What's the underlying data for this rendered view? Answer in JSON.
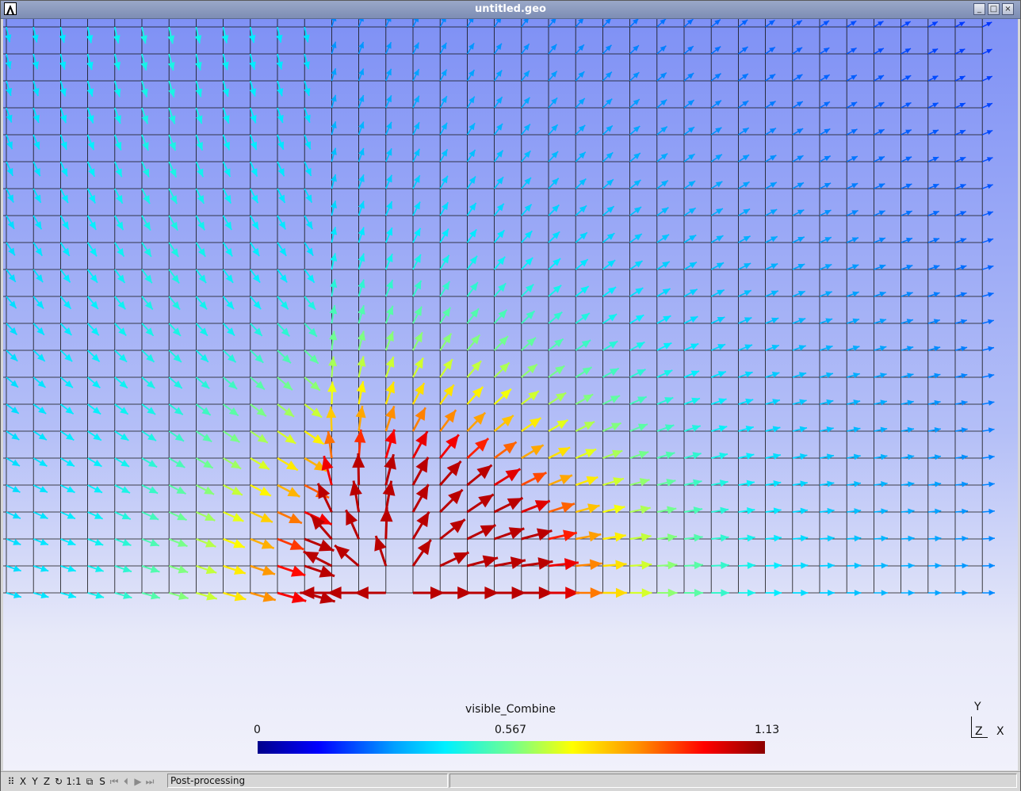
{
  "window": {
    "title": "untitled.geo",
    "minimize": "_",
    "maximize": "□",
    "close": "×"
  },
  "plot": {
    "view_name": "visible_Combine",
    "range_min": "0",
    "range_mid": "0.567",
    "range_max": "1.13",
    "axes": {
      "y": "Y",
      "z": "Z",
      "x": "X"
    },
    "colormap": [
      "#00008c",
      "#0000ff",
      "#00a0ff",
      "#00f0ff",
      "#70ff90",
      "#ffff00",
      "#ff9000",
      "#ff0000",
      "#8c0000"
    ]
  },
  "statusbar": {
    "buttons": [
      {
        "name": "snap-icon",
        "label": "⠿",
        "enabled": true
      },
      {
        "name": "x-view-button",
        "label": "X",
        "enabled": true
      },
      {
        "name": "y-view-button",
        "label": "Y",
        "enabled": true
      },
      {
        "name": "z-view-button",
        "label": "Z",
        "enabled": true
      },
      {
        "name": "rotate-icon",
        "label": "↻",
        "enabled": true
      },
      {
        "name": "scale-one-button",
        "label": "1:1",
        "enabled": true
      },
      {
        "name": "projection-icon",
        "label": "⧉",
        "enabled": true
      },
      {
        "name": "s-button",
        "label": "S",
        "enabled": true
      },
      {
        "name": "first-step-icon",
        "label": "⏮",
        "enabled": false
      },
      {
        "name": "prev-step-icon",
        "label": "⏴",
        "enabled": false
      },
      {
        "name": "play-icon",
        "label": "▶",
        "enabled": false
      },
      {
        "name": "last-step-icon",
        "label": "⏭",
        "enabled": false
      }
    ],
    "message": "Post-processing",
    "message2": ""
  }
}
